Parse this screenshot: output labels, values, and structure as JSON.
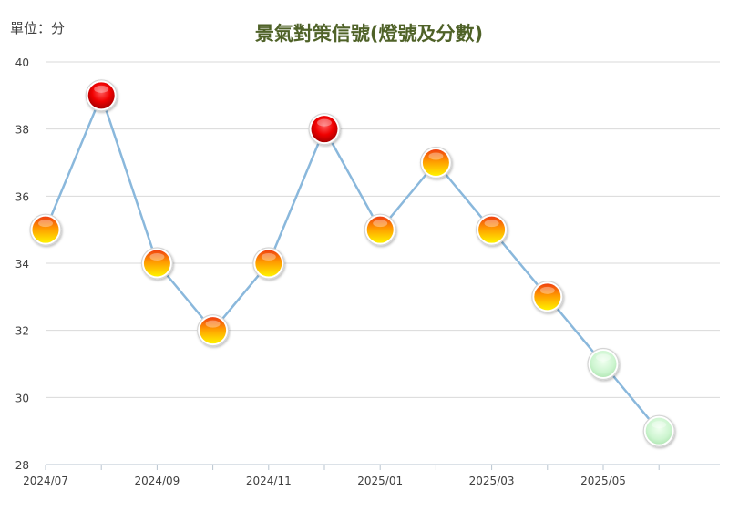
{
  "chart_data": {
    "type": "line",
    "title": "景氣對策信號(燈號及分數)",
    "unit_label": "單位：分",
    "ylim": [
      28,
      40
    ],
    "y_ticks": [
      28,
      30,
      32,
      34,
      36,
      38,
      40
    ],
    "x_tick_labels": [
      "2024/07",
      "2024/09",
      "2024/11",
      "2025/01",
      "2025/03",
      "2025/05"
    ],
    "grid": true,
    "series": [
      {
        "x": [
          "2024/07",
          "2024/08",
          "2024/09",
          "2024/10",
          "2024/11",
          "2024/12",
          "2025/01",
          "2025/02",
          "2025/03",
          "2025/04",
          "2025/05",
          "2025/06"
        ],
        "values": [
          35,
          39,
          34,
          32,
          34,
          38,
          35,
          37,
          35,
          33,
          31,
          29
        ],
        "signal": [
          "yellow-red",
          "red",
          "yellow-red",
          "yellow-red",
          "yellow-red",
          "red",
          "yellow-red",
          "yellow-red",
          "yellow-red",
          "yellow-red",
          "green",
          "green"
        ]
      }
    ],
    "colors": {
      "title": "#4f6228",
      "line": "#8ab8dc",
      "grid": "#d9d9d9",
      "axis_text": "#404040",
      "red": "#ff0000",
      "yellow-red": "#ff9900",
      "green": "#c6efce"
    }
  }
}
